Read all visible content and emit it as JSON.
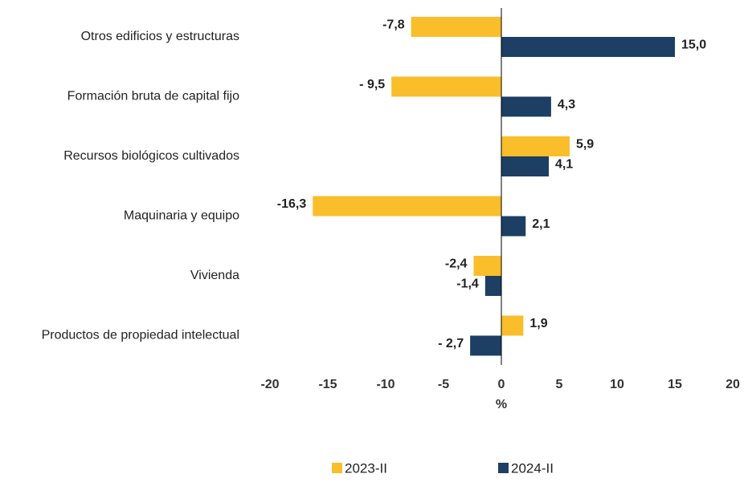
{
  "chart_data": {
    "type": "barh",
    "categories": [
      "Otros edificios y estructuras",
      "Formación bruta de capital fijo",
      "Recursos biológicos cultivados",
      "Maquinaria y equipo",
      "Vivienda",
      "Productos de propiedad intelectual"
    ],
    "series": [
      {
        "name": "2023-II",
        "color": "#f9be29",
        "values": [
          -7.8,
          -9.5,
          5.9,
          -16.3,
          -2.4,
          1.9
        ],
        "value_labels": [
          "-7,8",
          "- 9,5",
          "5,9",
          "-16,3",
          "-2,4",
          "1,9"
        ]
      },
      {
        "name": "2024-II",
        "color": "#1c3f63",
        "values": [
          15.0,
          4.3,
          4.1,
          2.1,
          -1.4,
          -2.7
        ],
        "value_labels": [
          "15,0",
          "4,3",
          "4,1",
          "2,1",
          "-1,4",
          "- 2,7"
        ]
      }
    ],
    "xlim": [
      -20,
      20
    ],
    "xticks": [
      -20,
      -15,
      -10,
      -5,
      0,
      5,
      10,
      15,
      20
    ],
    "x_label": "%",
    "legend": "bottom"
  }
}
